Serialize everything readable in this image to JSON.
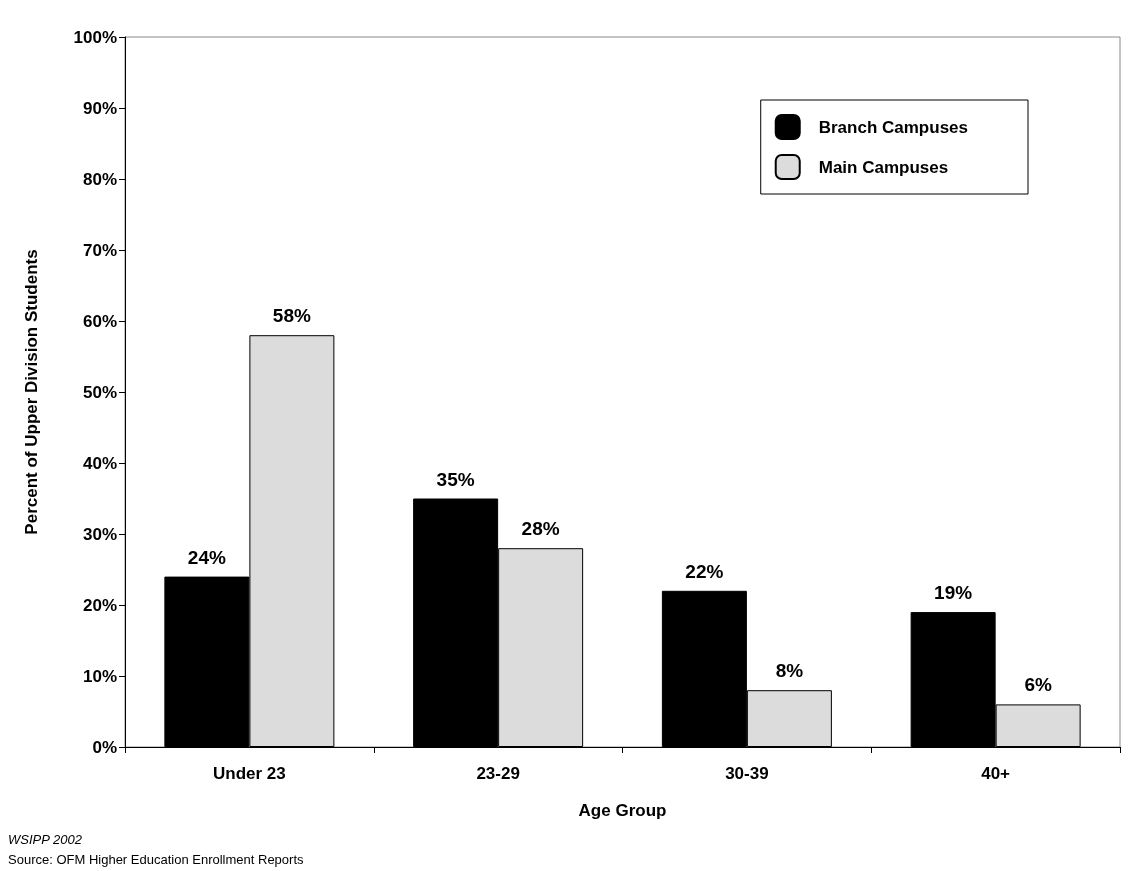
{
  "chart_data": {
    "type": "bar",
    "xlabel": "Age Group",
    "ylabel": "Percent of Upper Division Students",
    "categories": [
      "Under 23",
      "23-29",
      "30-39",
      "40+"
    ],
    "series": [
      {
        "name": "Branch Campuses",
        "color": "#000000",
        "values": [
          24,
          35,
          22,
          19
        ],
        "value_labels": [
          "24%",
          "35%",
          "22%",
          "19%"
        ]
      },
      {
        "name": "Main Campuses",
        "color": "#dcdcdc",
        "values": [
          58,
          28,
          8,
          6
        ],
        "value_labels": [
          "58%",
          "28%",
          "8%",
          "6%"
        ]
      }
    ],
    "ylim": [
      0,
      100
    ],
    "yticks": [
      {
        "value": 0,
        "label": "0%"
      },
      {
        "value": 10,
        "label": "10%"
      },
      {
        "value": 20,
        "label": "20%"
      },
      {
        "value": 30,
        "label": "30%"
      },
      {
        "value": 40,
        "label": "40%"
      },
      {
        "value": 50,
        "label": "50%"
      },
      {
        "value": 60,
        "label": "60%"
      },
      {
        "value": 70,
        "label": "70%"
      },
      {
        "value": 80,
        "label": "80%"
      },
      {
        "value": 90,
        "label": "90%"
      },
      {
        "value": 100,
        "label": "100%"
      }
    ],
    "grid": false,
    "legend": "top right",
    "annotations": [
      "WSIPP 2002",
      "Source:  OFM Higher Education Enrollment Reports"
    ]
  }
}
